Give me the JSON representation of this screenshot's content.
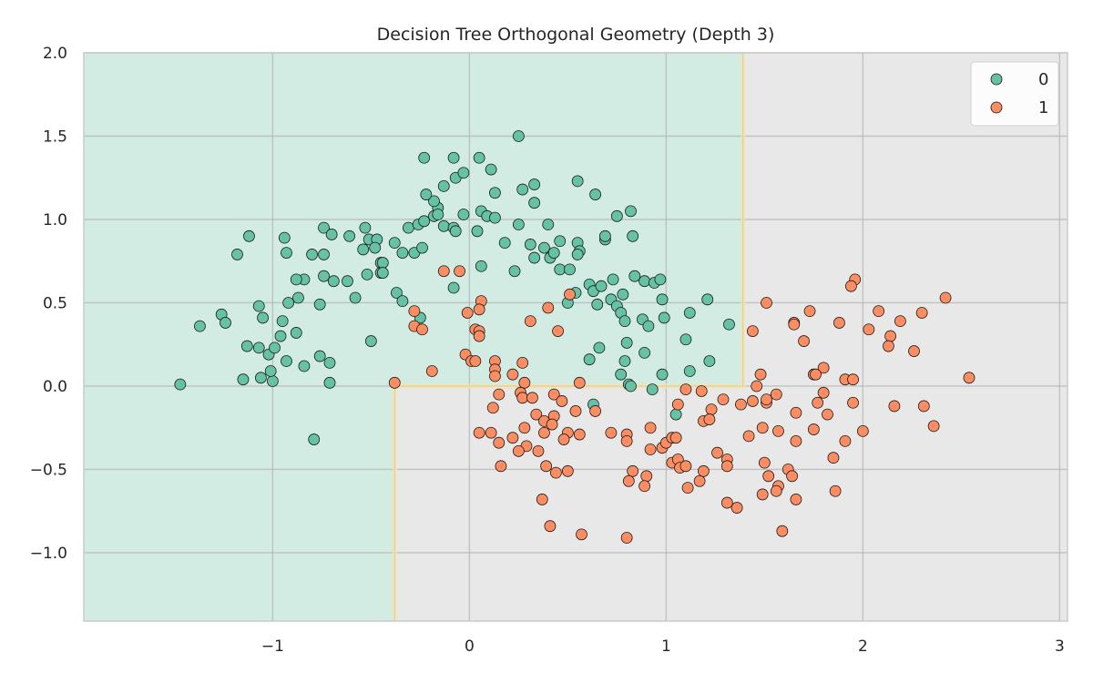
{
  "chart_data": {
    "type": "scatter",
    "title": "Decision Tree Orthogonal Geometry (Depth 3)",
    "xlabel": "",
    "ylabel": "",
    "xlim": [
      -1.96,
      3.04
    ],
    "ylim": [
      -1.41,
      2.0
    ],
    "x_ticks": [
      "−1",
      "0",
      "1",
      "2",
      "3"
    ],
    "x_tick_values": [
      -1,
      0,
      1,
      2,
      3
    ],
    "y_ticks": [
      "−1.0",
      "−0.5",
      "0.0",
      "0.5",
      "1.0",
      "1.5",
      "2.0"
    ],
    "y_tick_values": [
      -1.0,
      -0.5,
      0.0,
      0.5,
      1.0,
      1.5,
      2.0
    ],
    "grid": true,
    "legend_position": "top-right",
    "decision_regions": {
      "class_0_region": "x < -0.38 or (x < 1.39 and y > 0.0)",
      "class_1_region": "otherwise",
      "thresholds": {
        "x_left": -0.38,
        "x_right": 1.39,
        "y": 0.0
      },
      "colors": {
        "0": "#d2ebe3",
        "1": "#e8e8e8"
      }
    },
    "series": [
      {
        "name": "0",
        "color": "#66c2a5",
        "points": [
          [
            -1.47,
            0.01
          ],
          [
            -1.37,
            0.36
          ],
          [
            -1.26,
            0.43
          ],
          [
            -1.24,
            0.38
          ],
          [
            -1.18,
            0.79
          ],
          [
            -1.12,
            0.9
          ],
          [
            -1.15,
            0.04
          ],
          [
            -1.06,
            0.05
          ],
          [
            -1.0,
            0.03
          ],
          [
            -1.01,
            0.09
          ],
          [
            -1.13,
            0.24
          ],
          [
            -1.07,
            0.23
          ],
          [
            -1.02,
            0.19
          ],
          [
            -0.99,
            0.23
          ],
          [
            -0.96,
            0.3
          ],
          [
            -0.95,
            0.39
          ],
          [
            -1.05,
            0.41
          ],
          [
            -1.07,
            0.48
          ],
          [
            -0.93,
            0.15
          ],
          [
            -0.88,
            0.32
          ],
          [
            -0.92,
            0.5
          ],
          [
            -0.87,
            0.53
          ],
          [
            -0.76,
            0.49
          ],
          [
            -0.84,
            0.12
          ],
          [
            -0.76,
            0.18
          ],
          [
            -0.71,
            0.14
          ],
          [
            -0.71,
            0.02
          ],
          [
            -0.79,
            -0.32
          ],
          [
            -0.5,
            0.27
          ],
          [
            -0.58,
            0.53
          ],
          [
            -0.62,
            0.63
          ],
          [
            -0.69,
            0.63
          ],
          [
            -0.74,
            0.66
          ],
          [
            -0.84,
            0.64
          ],
          [
            -0.88,
            0.64
          ],
          [
            -0.93,
            0.8
          ],
          [
            -0.94,
            0.89
          ],
          [
            -0.8,
            0.79
          ],
          [
            -0.74,
            0.79
          ],
          [
            -0.74,
            0.95
          ],
          [
            -0.7,
            0.91
          ],
          [
            -0.61,
            0.9
          ],
          [
            -0.53,
            0.95
          ],
          [
            -0.51,
            0.88
          ],
          [
            -0.47,
            0.88
          ],
          [
            -0.54,
            0.82
          ],
          [
            -0.48,
            0.83
          ],
          [
            -0.45,
            0.74
          ],
          [
            -0.45,
            0.68
          ],
          [
            -0.52,
            0.67
          ],
          [
            -0.38,
            0.86
          ],
          [
            -0.34,
            0.8
          ],
          [
            -0.28,
            0.8
          ],
          [
            -0.24,
            0.83
          ],
          [
            -0.37,
            0.56
          ],
          [
            -0.34,
            0.51
          ],
          [
            -0.25,
            0.41
          ],
          [
            -0.31,
            0.95
          ],
          [
            -0.26,
            0.97
          ],
          [
            -0.23,
            0.99
          ],
          [
            -0.18,
            1.02
          ],
          [
            -0.13,
            0.96
          ],
          [
            -0.08,
            0.95
          ],
          [
            -0.16,
            1.07
          ],
          [
            -0.16,
            1.03
          ],
          [
            -0.18,
            1.11
          ],
          [
            -0.22,
            1.15
          ],
          [
            -0.13,
            1.2
          ],
          [
            -0.07,
            1.25
          ],
          [
            -0.03,
            1.28
          ],
          [
            -0.08,
            1.37
          ],
          [
            -0.23,
            1.37
          ],
          [
            -0.07,
            0.93
          ],
          [
            -0.03,
            1.03
          ],
          [
            -0.08,
            0.59
          ],
          [
            0.05,
            1.37
          ],
          [
            0.11,
            1.3
          ],
          [
            0.13,
            1.16
          ],
          [
            0.25,
            1.5
          ],
          [
            0.06,
            1.05
          ],
          [
            0.09,
            1.02
          ],
          [
            0.13,
            1.01
          ],
          [
            0.04,
            0.93
          ],
          [
            0.06,
            0.72
          ],
          [
            0.18,
            0.86
          ],
          [
            0.25,
            0.97
          ],
          [
            0.27,
            1.18
          ],
          [
            0.33,
            1.21
          ],
          [
            0.33,
            1.1
          ],
          [
            0.23,
            0.69
          ],
          [
            0.31,
            0.85
          ],
          [
            0.33,
            0.77
          ],
          [
            0.38,
            0.83
          ],
          [
            0.41,
            0.77
          ],
          [
            0.43,
            0.8
          ],
          [
            0.46,
            0.87
          ],
          [
            0.4,
            0.97
          ],
          [
            0.46,
            0.7
          ],
          [
            0.51,
            0.7
          ],
          [
            0.55,
            0.86
          ],
          [
            0.56,
            0.81
          ],
          [
            0.55,
            0.79
          ],
          [
            0.55,
            1.23
          ],
          [
            0.64,
            1.15
          ],
          [
            0.54,
            0.56
          ],
          [
            0.5,
            0.5
          ],
          [
            0.61,
            0.61
          ],
          [
            0.63,
            0.57
          ],
          [
            0.67,
            0.6
          ],
          [
            0.65,
            0.49
          ],
          [
            0.73,
            0.64
          ],
          [
            0.72,
            0.52
          ],
          [
            0.78,
            0.55
          ],
          [
            0.75,
            0.48
          ],
          [
            0.77,
            0.44
          ],
          [
            0.79,
            0.39
          ],
          [
            0.88,
            0.4
          ],
          [
            0.91,
            0.36
          ],
          [
            0.84,
            0.66
          ],
          [
            0.89,
            0.63
          ],
          [
            0.94,
            0.62
          ],
          [
            0.97,
            0.64
          ],
          [
            0.98,
            0.52
          ],
          [
            0.99,
            0.41
          ],
          [
            1.12,
            0.44
          ],
          [
            1.21,
            0.52
          ],
          [
            1.32,
            0.37
          ],
          [
            1.1,
            0.28
          ],
          [
            1.22,
            0.15
          ],
          [
            1.12,
            0.09
          ],
          [
            0.98,
            0.07
          ],
          [
            0.89,
            0.2
          ],
          [
            0.8,
            0.26
          ],
          [
            0.79,
            0.15
          ],
          [
            0.77,
            0.07
          ],
          [
            0.81,
            0.01
          ],
          [
            0.82,
            0.0
          ],
          [
            0.93,
            -0.02
          ],
          [
            0.66,
            0.23
          ],
          [
            0.61,
            0.16
          ],
          [
            0.69,
            0.88
          ],
          [
            0.69,
            0.9
          ],
          [
            0.83,
            0.9
          ],
          [
            0.75,
            1.02
          ],
          [
            0.82,
            1.05
          ],
          [
            -0.44,
            0.74
          ],
          [
            -0.44,
            0.68
          ],
          [
            0.63,
            -0.11
          ],
          [
            1.05,
            -0.17
          ]
        ]
      },
      {
        "name": "1",
        "color": "#fc8d62",
        "points": [
          [
            -0.38,
            0.02
          ],
          [
            -0.19,
            0.09
          ],
          [
            -0.13,
            0.69
          ],
          [
            -0.05,
            0.69
          ],
          [
            -0.28,
            0.45
          ],
          [
            -0.28,
            0.36
          ],
          [
            -0.24,
            0.34
          ],
          [
            -0.01,
            0.44
          ],
          [
            0.06,
            0.51
          ],
          [
            0.05,
            0.46
          ],
          [
            0.03,
            0.34
          ],
          [
            0.05,
            0.33
          ],
          [
            0.05,
            0.3
          ],
          [
            -0.02,
            0.19
          ],
          [
            0.01,
            0.15
          ],
          [
            0.03,
            0.15
          ],
          [
            0.13,
            0.15
          ],
          [
            0.13,
            0.1
          ],
          [
            0.13,
            0.06
          ],
          [
            0.22,
            0.07
          ],
          [
            0.27,
            0.14
          ],
          [
            0.28,
            0.02
          ],
          [
            0.31,
            0.39
          ],
          [
            0.4,
            0.47
          ],
          [
            0.45,
            0.33
          ],
          [
            0.51,
            0.55
          ],
          [
            0.56,
            0.02
          ],
          [
            0.15,
            -0.05
          ],
          [
            0.12,
            -0.13
          ],
          [
            0.26,
            -0.04
          ],
          [
            0.27,
            -0.07
          ],
          [
            0.32,
            -0.07
          ],
          [
            0.43,
            -0.05
          ],
          [
            0.47,
            -0.09
          ],
          [
            0.54,
            -0.15
          ],
          [
            0.64,
            -0.15
          ],
          [
            0.34,
            -0.17
          ],
          [
            0.38,
            -0.21
          ],
          [
            0.43,
            -0.18
          ],
          [
            0.42,
            -0.23
          ],
          [
            0.28,
            -0.25
          ],
          [
            0.05,
            -0.28
          ],
          [
            0.11,
            -0.28
          ],
          [
            0.15,
            -0.34
          ],
          [
            0.22,
            -0.31
          ],
          [
            0.29,
            -0.36
          ],
          [
            0.25,
            -0.39
          ],
          [
            0.35,
            -0.39
          ],
          [
            0.38,
            -0.28
          ],
          [
            0.5,
            -0.28
          ],
          [
            0.48,
            -0.32
          ],
          [
            0.56,
            -0.29
          ],
          [
            0.72,
            -0.28
          ],
          [
            0.8,
            -0.29
          ],
          [
            0.8,
            -0.33
          ],
          [
            0.92,
            -0.25
          ],
          [
            0.92,
            -0.38
          ],
          [
            0.98,
            -0.37
          ],
          [
            1.0,
            -0.34
          ],
          [
            1.03,
            -0.31
          ],
          [
            1.05,
            -0.31
          ],
          [
            0.16,
            -0.48
          ],
          [
            0.39,
            -0.48
          ],
          [
            0.44,
            -0.52
          ],
          [
            0.5,
            -0.51
          ],
          [
            0.37,
            -0.68
          ],
          [
            0.41,
            -0.84
          ],
          [
            0.57,
            -0.89
          ],
          [
            0.8,
            -0.91
          ],
          [
            0.83,
            -0.51
          ],
          [
            0.81,
            -0.57
          ],
          [
            0.9,
            -0.54
          ],
          [
            0.89,
            -0.6
          ],
          [
            1.03,
            -0.46
          ],
          [
            1.06,
            -0.44
          ],
          [
            1.07,
            -0.49
          ],
          [
            1.1,
            -0.48
          ],
          [
            1.11,
            -0.61
          ],
          [
            1.17,
            -0.57
          ],
          [
            1.19,
            -0.51
          ],
          [
            1.26,
            -0.4
          ],
          [
            1.31,
            -0.44
          ],
          [
            1.31,
            -0.48
          ],
          [
            1.31,
            -0.7
          ],
          [
            1.36,
            -0.73
          ],
          [
            1.06,
            -0.11
          ],
          [
            1.1,
            -0.02
          ],
          [
            1.18,
            -0.03
          ],
          [
            1.23,
            -0.14
          ],
          [
            1.19,
            -0.21
          ],
          [
            1.22,
            -0.2
          ],
          [
            1.29,
            -0.08
          ],
          [
            1.38,
            -0.11
          ],
          [
            1.44,
            -0.09
          ],
          [
            1.51,
            -0.1
          ],
          [
            1.51,
            -0.08
          ],
          [
            1.56,
            -0.05
          ],
          [
            1.96,
            0.64
          ],
          [
            1.94,
            0.6
          ],
          [
            2.42,
            0.53
          ],
          [
            1.51,
            0.5
          ],
          [
            1.73,
            0.45
          ],
          [
            2.08,
            0.45
          ],
          [
            2.3,
            0.44
          ],
          [
            1.65,
            0.38
          ],
          [
            1.65,
            0.37
          ],
          [
            1.88,
            0.38
          ],
          [
            2.19,
            0.39
          ],
          [
            2.03,
            0.34
          ],
          [
            2.14,
            0.3
          ],
          [
            2.13,
            0.24
          ],
          [
            2.26,
            0.21
          ],
          [
            1.44,
            0.33
          ],
          [
            1.7,
            0.27
          ],
          [
            1.8,
            0.11
          ],
          [
            1.75,
            0.07
          ],
          [
            1.76,
            0.07
          ],
          [
            1.91,
            0.04
          ],
          [
            1.95,
            0.04
          ],
          [
            2.54,
            0.05
          ],
          [
            1.48,
            0.07
          ],
          [
            1.46,
            0.0
          ],
          [
            1.66,
            -0.16
          ],
          [
            1.77,
            -0.1
          ],
          [
            1.8,
            -0.04
          ],
          [
            1.95,
            -0.1
          ],
          [
            1.82,
            -0.17
          ],
          [
            2.16,
            -0.12
          ],
          [
            2.31,
            -0.12
          ],
          [
            2.36,
            -0.24
          ],
          [
            2.0,
            -0.27
          ],
          [
            1.75,
            -0.26
          ],
          [
            1.57,
            -0.27
          ],
          [
            1.49,
            -0.25
          ],
          [
            1.42,
            -0.3
          ],
          [
            1.66,
            -0.33
          ],
          [
            1.91,
            -0.33
          ],
          [
            1.85,
            -0.43
          ],
          [
            1.5,
            -0.46
          ],
          [
            1.62,
            -0.5
          ],
          [
            1.64,
            -0.54
          ],
          [
            1.52,
            -0.54
          ],
          [
            1.57,
            -0.6
          ],
          [
            1.56,
            -0.63
          ],
          [
            1.49,
            -0.65
          ],
          [
            1.66,
            -0.68
          ],
          [
            1.86,
            -0.63
          ],
          [
            1.59,
            -0.87
          ]
        ]
      }
    ]
  }
}
